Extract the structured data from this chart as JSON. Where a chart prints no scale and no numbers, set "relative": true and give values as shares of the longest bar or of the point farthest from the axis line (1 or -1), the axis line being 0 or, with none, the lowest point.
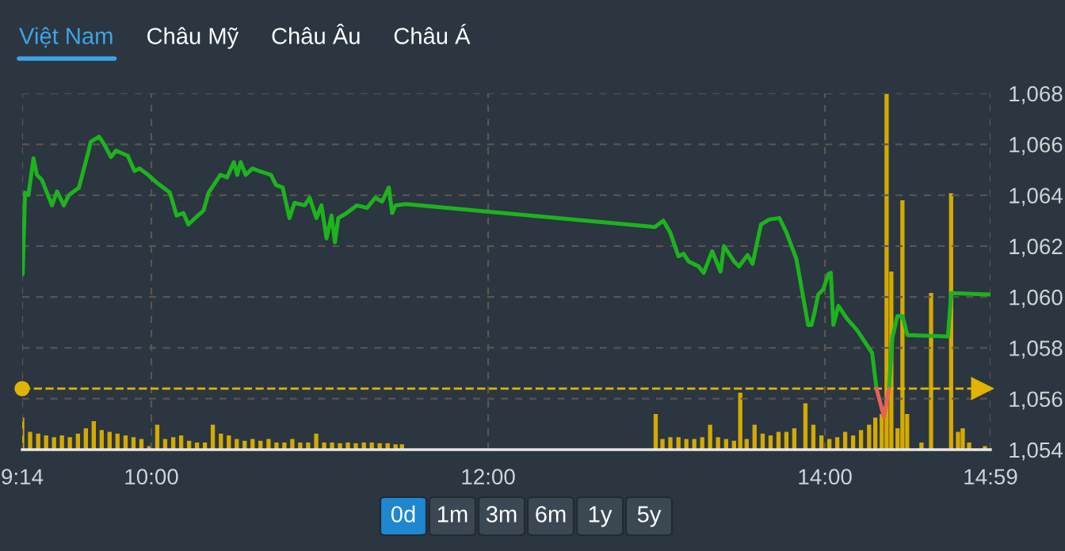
{
  "chart_data": [
    {
      "type": "line",
      "x": [
        9.236,
        9.25,
        9.27,
        9.3,
        9.32,
        9.35,
        9.41,
        9.44,
        9.48,
        9.51,
        9.57,
        9.62,
        9.64,
        9.69,
        9.72,
        9.76,
        9.79,
        9.86,
        9.9,
        9.93,
        9.98,
        10.04,
        10.11,
        10.15,
        10.19,
        10.22,
        10.26,
        10.31,
        10.34,
        10.41,
        10.45,
        10.49,
        10.51,
        10.53,
        10.56,
        10.6,
        10.64,
        10.71,
        10.74,
        10.78,
        10.82,
        10.85,
        10.91,
        10.94,
        10.98,
        11.01,
        11.04,
        11.07,
        11.09,
        11.11,
        11.16,
        11.22,
        11.28,
        11.33,
        11.37,
        11.41,
        11.43,
        11.45,
        11.51,
        12.99,
        13.04,
        13.08,
        13.13,
        13.16,
        13.19,
        13.25,
        13.28,
        13.33,
        13.38,
        13.4,
        13.46,
        13.49,
        13.54,
        13.57,
        13.62,
        13.67,
        13.73,
        13.77,
        13.83,
        13.9,
        13.92,
        13.94,
        13.96,
        13.99,
        14.02,
        14.035,
        14.05,
        14.08,
        14.13,
        14.19,
        14.28,
        14.306,
        14.35,
        14.38,
        14.4,
        14.43,
        14.46,
        14.49,
        14.73,
        14.75,
        14.98
      ],
      "series": [
        {
          "color": "#1db31d",
          "values": [
            1060.9,
            1064.1,
            1064.0,
            1065.45,
            1064.8,
            1064.6,
            1063.6,
            1064.15,
            1063.6,
            1064.0,
            1064.3,
            1065.55,
            1066.1,
            1066.3,
            1066.0,
            1065.5,
            1065.75,
            1065.55,
            1064.95,
            1065.05,
            1064.8,
            1064.45,
            1064.1,
            1063.2,
            1063.3,
            1062.85,
            1063.1,
            1063.4,
            1064.1,
            1064.8,
            1064.7,
            1065.3,
            1064.8,
            1065.3,
            1064.8,
            1065.05,
            1064.95,
            1064.8,
            1064.4,
            1064.3,
            1063.1,
            1063.7,
            1063.6,
            1063.9,
            1063.1,
            1063.6,
            1062.3,
            1063.2,
            1062.15,
            1063.1,
            1063.3,
            1063.6,
            1063.5,
            1063.9,
            1063.75,
            1064.3,
            1063.3,
            1063.6,
            1063.65,
            1062.75,
            1063.0,
            1062.55,
            1061.6,
            1061.7,
            1061.4,
            1061.2,
            1060.95,
            1061.8,
            1061.0,
            1062.0,
            1061.4,
            1061.2,
            1061.65,
            1061.3,
            1062.85,
            1063.05,
            1063.1,
            1062.55,
            1061.5,
            1058.9,
            1058.9,
            1059.45,
            1060.1,
            1060.3,
            1060.9,
            1060.95,
            1058.9,
            1059.65,
            1059.15,
            1058.7,
            1057.8,
            1056.4,
            null,
            1056.4,
            1058.4,
            1059.25,
            1059.25,
            1058.5,
            1058.45,
            1060.15,
            1060.1
          ]
        },
        {
          "color": "#e8605a",
          "x": [
            14.306,
            14.35,
            14.38
          ],
          "values": [
            1056.4,
            1055.3,
            1056.4
          ]
        }
      ],
      "xlim": [
        9.233,
        14.983
      ],
      "xticks": [
        {
          "value": 9.233,
          "label": "9:14"
        },
        {
          "value": 10,
          "label": "10:00"
        },
        {
          "value": 12,
          "label": "12:00"
        },
        {
          "value": 14,
          "label": "14:00"
        },
        {
          "value": 14.983,
          "label": "14:59"
        }
      ],
      "ylim": [
        1054,
        1068
      ],
      "yticks": [
        {
          "value": 1054,
          "label": "1,054"
        },
        {
          "value": 1056,
          "label": "1,056"
        },
        {
          "value": 1058,
          "label": "1,058"
        },
        {
          "value": 1060,
          "label": "1,060"
        },
        {
          "value": 1062,
          "label": "1,062"
        },
        {
          "value": 1064,
          "label": "1,064"
        },
        {
          "value": 1066,
          "label": "1,066"
        },
        {
          "value": 1068,
          "label": "1,068"
        }
      ],
      "ref_lines": [
        {
          "axis": "y",
          "value": 1056.4,
          "color": "#e0b400",
          "line_style": "dashed"
        }
      ],
      "grid": true,
      "line_style": "solid",
      "annotations": [
        "Việt Nam",
        "Châu Mỹ",
        "Châu Âu",
        "Châu Á",
        "0d",
        "1m",
        "3m",
        "6m",
        "1y",
        "5y"
      ]
    },
    {
      "type": "bar",
      "relative": true,
      "color": "#d4aa00",
      "xlim": [
        9.233,
        14.983
      ],
      "x": [
        9.233,
        9.28,
        9.328,
        9.375,
        9.422,
        9.469,
        9.516,
        9.564,
        9.611,
        9.658,
        9.705,
        9.752,
        9.799,
        9.847,
        9.894,
        9.941,
        9.988,
        10.035,
        10.082,
        10.13,
        10.177,
        10.224,
        10.271,
        10.318,
        10.365,
        10.413,
        10.46,
        10.507,
        10.554,
        10.601,
        10.648,
        10.696,
        10.743,
        10.79,
        10.837,
        10.884,
        10.931,
        10.979,
        11.026,
        11.073,
        11.12,
        11.167,
        11.214,
        11.262,
        11.309,
        11.356,
        11.403,
        11.45,
        11.488,
        12.995,
        13.035,
        13.082,
        13.13,
        13.177,
        13.224,
        13.271,
        13.318,
        13.365,
        13.413,
        13.46,
        13.497,
        13.535,
        13.582,
        13.63,
        13.677,
        13.724,
        13.771,
        13.818,
        13.884,
        13.931,
        13.979,
        14.026,
        14.073,
        14.12,
        14.167,
        14.214,
        14.262,
        14.299,
        14.337,
        14.366,
        14.394,
        14.431,
        14.46,
        14.488,
        14.573,
        14.63,
        14.749,
        14.79,
        14.818,
        14.856,
        14.95
      ],
      "values": [
        0.09,
        0.05,
        0.045,
        0.04,
        0.035,
        0.04,
        0.035,
        0.045,
        0.06,
        0.08,
        0.055,
        0.05,
        0.045,
        0.04,
        0.035,
        0.03,
        0.01,
        0.07,
        0.03,
        0.035,
        0.04,
        0.025,
        0.02,
        0.02,
        0.07,
        0.045,
        0.04,
        0.03,
        0.025,
        0.03,
        0.025,
        0.03,
        0.02,
        0.02,
        0.03,
        0.02,
        0.02,
        0.045,
        0.02,
        0.02,
        0.018,
        0.02,
        0.018,
        0.02,
        0.02,
        0.018,
        0.018,
        0.015,
        0.015,
        0.1,
        0.03,
        0.035,
        0.035,
        0.03,
        0.03,
        0.035,
        0.07,
        0.035,
        0.03,
        0.025,
        0.16,
        0.03,
        0.07,
        0.045,
        0.04,
        0.05,
        0.05,
        0.06,
        0.13,
        0.07,
        0.04,
        0.03,
        0.035,
        0.05,
        0.04,
        0.055,
        0.07,
        0.09,
        0.1,
        1.0,
        0.5,
        0.06,
        0.7,
        0.1,
        0.02,
        0.44,
        0.72,
        0.05,
        0.06,
        0.02,
        0.01
      ]
    }
  ]
}
